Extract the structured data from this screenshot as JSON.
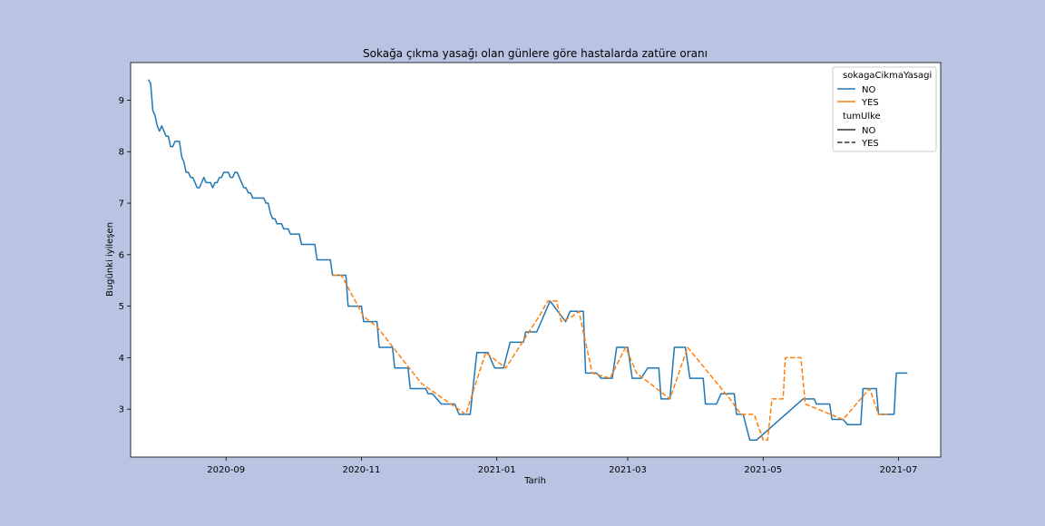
{
  "chart_data": {
    "type": "line",
    "title": "Sokağa çıkma yasağı olan günlere göre hastalarda zatüre oranı",
    "xlabel": "Tarih",
    "ylabel": "Bugünki iyileşen",
    "x_ticks": [
      "2020-09",
      "2020-11",
      "2021-01",
      "2021-03",
      "2021-05",
      "2021-07"
    ],
    "y_ticks": [
      "3",
      "4",
      "5",
      "6",
      "7",
      "8",
      "9"
    ],
    "xlim": [
      "2020-07-20",
      "2021-07-20"
    ],
    "ylim": [
      2.07,
      9.73
    ],
    "grid": false,
    "legend_position": "top-right",
    "legend": {
      "hue_title": "sokagaCikmaYasagi",
      "hue_entries": [
        {
          "label": "NO",
          "color": "#1f77b4"
        },
        {
          "label": "YES",
          "color": "#ff7f0e"
        }
      ],
      "style_title": "tumUlke",
      "style_entries": [
        {
          "label": "NO",
          "dash": "solid"
        },
        {
          "label": "YES",
          "dash": "dashed"
        }
      ]
    },
    "series": [
      {
        "name": "NO",
        "color": "#1f77b4",
        "dash": "solid",
        "points": [
          [
            "2020-07-28",
            9.4
          ],
          [
            "2020-07-29",
            9.33
          ],
          [
            "2020-07-30",
            8.8
          ],
          [
            "2020-07-31",
            8.7
          ],
          [
            "2020-08-01",
            8.5
          ],
          [
            "2020-08-02",
            8.4
          ],
          [
            "2020-08-03",
            8.5
          ],
          [
            "2020-08-04",
            8.4
          ],
          [
            "2020-08-05",
            8.3
          ],
          [
            "2020-08-06",
            8.3
          ],
          [
            "2020-08-07",
            8.1
          ],
          [
            "2020-08-08",
            8.1
          ],
          [
            "2020-08-09",
            8.2
          ],
          [
            "2020-08-10",
            8.2
          ],
          [
            "2020-08-11",
            8.2
          ],
          [
            "2020-08-12",
            7.9
          ],
          [
            "2020-08-13",
            7.8
          ],
          [
            "2020-08-14",
            7.6
          ],
          [
            "2020-08-15",
            7.6
          ],
          [
            "2020-08-16",
            7.5
          ],
          [
            "2020-08-17",
            7.5
          ],
          [
            "2020-08-18",
            7.4
          ],
          [
            "2020-08-19",
            7.3
          ],
          [
            "2020-08-20",
            7.3
          ],
          [
            "2020-08-21",
            7.4
          ],
          [
            "2020-08-22",
            7.5
          ],
          [
            "2020-08-23",
            7.4
          ],
          [
            "2020-08-24",
            7.4
          ],
          [
            "2020-08-25",
            7.4
          ],
          [
            "2020-08-26",
            7.3
          ],
          [
            "2020-08-27",
            7.4
          ],
          [
            "2020-08-28",
            7.4
          ],
          [
            "2020-08-29",
            7.5
          ],
          [
            "2020-08-30",
            7.5
          ],
          [
            "2020-08-31",
            7.6
          ],
          [
            "2020-09-01",
            7.6
          ],
          [
            "2020-09-02",
            7.6
          ],
          [
            "2020-09-03",
            7.5
          ],
          [
            "2020-09-04",
            7.5
          ],
          [
            "2020-09-05",
            7.6
          ],
          [
            "2020-09-06",
            7.6
          ],
          [
            "2020-09-07",
            7.5
          ],
          [
            "2020-09-08",
            7.4
          ],
          [
            "2020-09-09",
            7.3
          ],
          [
            "2020-09-10",
            7.3
          ],
          [
            "2020-09-11",
            7.2
          ],
          [
            "2020-09-12",
            7.2
          ],
          [
            "2020-09-13",
            7.1
          ],
          [
            "2020-09-14",
            7.1
          ],
          [
            "2020-09-15",
            7.1
          ],
          [
            "2020-09-16",
            7.1
          ],
          [
            "2020-09-17",
            7.1
          ],
          [
            "2020-09-18",
            7.1
          ],
          [
            "2020-09-19",
            7.0
          ],
          [
            "2020-09-20",
            7.0
          ],
          [
            "2020-09-21",
            6.8
          ],
          [
            "2020-09-22",
            6.7
          ],
          [
            "2020-09-23",
            6.7
          ],
          [
            "2020-09-24",
            6.6
          ],
          [
            "2020-09-25",
            6.6
          ],
          [
            "2020-09-26",
            6.6
          ],
          [
            "2020-09-27",
            6.5
          ],
          [
            "2020-09-28",
            6.5
          ],
          [
            "2020-09-29",
            6.5
          ],
          [
            "2020-09-30",
            6.4
          ],
          [
            "2020-10-01",
            6.4
          ],
          [
            "2020-10-02",
            6.4
          ],
          [
            "2020-10-03",
            6.4
          ],
          [
            "2020-10-04",
            6.4
          ],
          [
            "2020-10-05",
            6.2
          ],
          [
            "2020-10-06",
            6.2
          ],
          [
            "2020-10-07",
            6.2
          ],
          [
            "2020-10-08",
            6.2
          ],
          [
            "2020-10-09",
            6.2
          ],
          [
            "2020-10-10",
            6.2
          ],
          [
            "2020-10-11",
            6.2
          ],
          [
            "2020-10-12",
            5.9
          ],
          [
            "2020-10-13",
            5.9
          ],
          [
            "2020-10-14",
            5.9
          ],
          [
            "2020-10-15",
            5.9
          ],
          [
            "2020-10-16",
            5.9
          ],
          [
            "2020-10-17",
            5.9
          ],
          [
            "2020-10-18",
            5.9
          ],
          [
            "2020-10-19",
            5.6
          ],
          [
            "2020-10-25",
            5.6
          ],
          [
            "2020-10-26",
            5.0
          ],
          [
            "2020-11-01",
            5.0
          ],
          [
            "2020-11-02",
            4.7
          ],
          [
            "2020-11-08",
            4.7
          ],
          [
            "2020-11-09",
            4.2
          ],
          [
            "2020-11-15",
            4.2
          ],
          [
            "2020-11-16",
            3.8
          ],
          [
            "2020-11-22",
            3.8
          ],
          [
            "2020-11-23",
            3.4
          ],
          [
            "2020-11-30",
            3.4
          ],
          [
            "2020-12-01",
            3.3
          ],
          [
            "2020-12-03",
            3.3
          ],
          [
            "2020-12-07",
            3.1
          ],
          [
            "2020-12-13",
            3.1
          ],
          [
            "2020-12-15",
            2.9
          ],
          [
            "2020-12-20",
            2.9
          ],
          [
            "2020-12-23",
            4.1
          ],
          [
            "2020-12-28",
            4.1
          ],
          [
            "2020-12-31",
            3.8
          ],
          [
            "2021-01-04",
            3.8
          ],
          [
            "2021-01-07",
            4.3
          ],
          [
            "2021-01-13",
            4.3
          ],
          [
            "2021-01-14",
            4.5
          ],
          [
            "2021-01-19",
            4.5
          ],
          [
            "2021-01-25",
            5.1
          ],
          [
            "2021-02-01",
            4.7
          ],
          [
            "2021-02-03",
            4.9
          ],
          [
            "2021-02-09",
            4.9
          ],
          [
            "2021-02-10",
            3.7
          ],
          [
            "2021-02-15",
            3.7
          ],
          [
            "2021-02-17",
            3.6
          ],
          [
            "2021-02-22",
            3.6
          ],
          [
            "2021-02-24",
            4.2
          ],
          [
            "2021-03-01",
            4.2
          ],
          [
            "2021-03-03",
            3.6
          ],
          [
            "2021-03-07",
            3.6
          ],
          [
            "2021-03-10",
            3.8
          ],
          [
            "2021-03-15",
            3.8
          ],
          [
            "2021-03-16",
            3.2
          ],
          [
            "2021-03-20",
            3.2
          ],
          [
            "2021-03-22",
            4.2
          ],
          [
            "2021-03-27",
            4.2
          ],
          [
            "2021-03-29",
            3.6
          ],
          [
            "2021-04-04",
            3.6
          ],
          [
            "2021-04-05",
            3.1
          ],
          [
            "2021-04-10",
            3.1
          ],
          [
            "2021-04-12",
            3.3
          ],
          [
            "2021-04-18",
            3.3
          ],
          [
            "2021-04-19",
            2.9
          ],
          [
            "2021-04-22",
            2.9
          ],
          [
            "2021-04-25",
            2.4
          ],
          [
            "2021-04-28",
            2.4
          ],
          [
            "2021-05-19",
            3.2
          ],
          [
            "2021-05-24",
            3.2
          ],
          [
            "2021-05-25",
            3.1
          ],
          [
            "2021-05-31",
            3.1
          ],
          [
            "2021-06-01",
            2.8
          ],
          [
            "2021-06-06",
            2.8
          ],
          [
            "2021-06-08",
            2.7
          ],
          [
            "2021-06-14",
            2.7
          ],
          [
            "2021-06-15",
            3.4
          ],
          [
            "2021-06-21",
            3.4
          ],
          [
            "2021-06-22",
            2.9
          ],
          [
            "2021-06-29",
            2.9
          ],
          [
            "2021-06-30",
            3.7
          ],
          [
            "2021-07-05",
            3.7
          ]
        ]
      },
      {
        "name": "YES",
        "color": "#ff7f0e",
        "dash": "dashed",
        "points": [
          [
            "2020-10-19",
            5.6
          ],
          [
            "2020-10-23",
            5.6
          ],
          [
            "2020-11-02",
            4.8
          ],
          [
            "2020-11-08",
            4.6
          ],
          [
            "2020-11-28",
            3.5
          ],
          [
            "2020-12-18",
            2.9
          ],
          [
            "2020-12-27",
            4.1
          ],
          [
            "2021-01-05",
            3.8
          ],
          [
            "2021-01-20",
            4.8
          ],
          [
            "2021-01-24",
            5.1
          ],
          [
            "2021-01-28",
            5.1
          ],
          [
            "2021-01-30",
            4.7
          ],
          [
            "2021-02-04",
            4.8
          ],
          [
            "2021-02-07",
            4.9
          ],
          [
            "2021-02-13",
            3.7
          ],
          [
            "2021-02-21",
            3.6
          ],
          [
            "2021-02-28",
            4.2
          ],
          [
            "2021-03-05",
            3.7
          ],
          [
            "2021-03-20",
            3.2
          ],
          [
            "2021-03-28",
            4.2
          ],
          [
            "2021-04-16",
            3.2
          ],
          [
            "2021-04-21",
            2.9
          ],
          [
            "2021-04-27",
            2.9
          ],
          [
            "2021-05-01",
            2.4
          ],
          [
            "2021-05-03",
            2.4
          ],
          [
            "2021-05-05",
            3.2
          ],
          [
            "2021-05-10",
            3.2
          ],
          [
            "2021-05-11",
            4.0
          ],
          [
            "2021-05-18",
            4.0
          ],
          [
            "2021-05-20",
            3.1
          ],
          [
            "2021-06-06",
            2.8
          ],
          [
            "2021-06-18",
            3.4
          ],
          [
            "2021-06-22",
            2.9
          ],
          [
            "2021-06-26",
            2.9
          ]
        ]
      }
    ]
  }
}
